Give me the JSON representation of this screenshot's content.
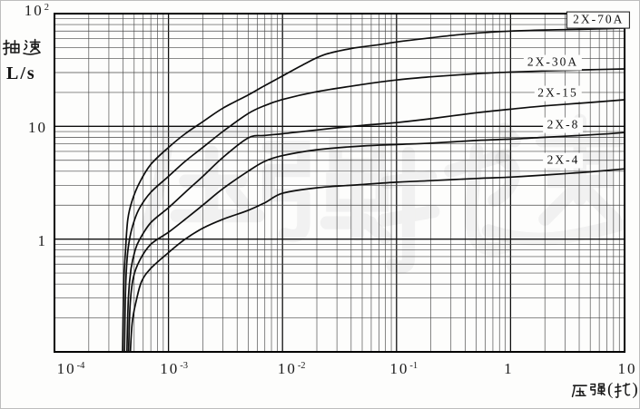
{
  "page": {
    "background": "#fdfdfc",
    "ink": "#141414"
  },
  "chart_data": {
    "type": "line",
    "title": "",
    "xlabel": "压强(托)",
    "ylabel": "抽速",
    "ylabel_units": "L/s",
    "x_scale": "log",
    "y_scale": "log",
    "xlim": [
      0.0001,
      10
    ],
    "ylim": [
      0.1,
      100
    ],
    "grid": "log-log graph paper with minor decade lines",
    "legend_position": "inline-right-labels",
    "x_ticks": [
      {
        "text": "10",
        "sup": "-4",
        "value": 0.0001
      },
      {
        "text": "10",
        "sup": "-3",
        "value": 0.001
      },
      {
        "text": "10",
        "sup": "-2",
        "value": 0.01
      },
      {
        "text": "10",
        "sup": "-1",
        "value": 0.1
      },
      {
        "text": "1",
        "sup": "",
        "value": 1
      },
      {
        "text": "10",
        "sup": "",
        "value": 10
      }
    ],
    "y_ticks": [
      {
        "text": "10",
        "sup": "2",
        "value": 100
      },
      {
        "text": "10",
        "sup": "",
        "value": 10
      },
      {
        "text": "1",
        "sup": "",
        "value": 1
      }
    ],
    "series": [
      {
        "name": "2X-70A",
        "boxed_label": true,
        "label_at": [
          5.9,
          88
        ],
        "points": [
          [
            0.000395,
            0.085
          ],
          [
            0.000405,
            0.4
          ],
          [
            0.00042,
            0.8
          ],
          [
            0.00044,
            1.5
          ],
          [
            0.00048,
            2.2
          ],
          [
            0.00056,
            3.2
          ],
          [
            0.0007,
            4.6
          ],
          [
            0.001,
            6.5
          ],
          [
            0.0014,
            8.6
          ],
          [
            0.002,
            11
          ],
          [
            0.003,
            14.5
          ],
          [
            0.005,
            19
          ],
          [
            0.007,
            23
          ],
          [
            0.01,
            28
          ],
          [
            0.015,
            35
          ],
          [
            0.023,
            43
          ],
          [
            0.04,
            49
          ],
          [
            0.07,
            53
          ],
          [
            0.1,
            56
          ],
          [
            0.2,
            61
          ],
          [
            0.35,
            65
          ],
          [
            0.6,
            68
          ],
          [
            1,
            70
          ],
          [
            2,
            71.5
          ],
          [
            4,
            72.5
          ],
          [
            7,
            73.5
          ],
          [
            10,
            74.5
          ]
        ]
      },
      {
        "name": "2X-30A",
        "boxed_label": false,
        "label_at": [
          2.35,
          36.5
        ],
        "points": [
          [
            0.00041,
            0.085
          ],
          [
            0.00042,
            0.35
          ],
          [
            0.000435,
            0.7
          ],
          [
            0.00046,
            1.05
          ],
          [
            0.0005,
            1.45
          ],
          [
            0.00056,
            1.9
          ],
          [
            0.0007,
            2.6
          ],
          [
            0.001,
            3.6
          ],
          [
            0.0014,
            4.9
          ],
          [
            0.002,
            6.5
          ],
          [
            0.003,
            9.0
          ],
          [
            0.005,
            13
          ],
          [
            0.007,
            15.3
          ],
          [
            0.01,
            17.3
          ],
          [
            0.02,
            20.3
          ],
          [
            0.05,
            23.5
          ],
          [
            0.1,
            25.8
          ],
          [
            0.2,
            27.5
          ],
          [
            0.5,
            29.3
          ],
          [
            1,
            30.3
          ],
          [
            2,
            31
          ],
          [
            5,
            31.8
          ],
          [
            10,
            32.3
          ]
        ]
      },
      {
        "name": "2X-15",
        "boxed_label": false,
        "label_at": [
          2.6,
          19.5
        ],
        "points": [
          [
            0.00043,
            0.085
          ],
          [
            0.000445,
            0.3
          ],
          [
            0.00047,
            0.55
          ],
          [
            0.00051,
            0.8
          ],
          [
            0.00056,
            1.0
          ],
          [
            0.0007,
            1.4
          ],
          [
            0.001,
            1.9
          ],
          [
            0.0014,
            2.6
          ],
          [
            0.002,
            3.6
          ],
          [
            0.003,
            5.3
          ],
          [
            0.005,
            7.9
          ],
          [
            0.007,
            8.3
          ],
          [
            0.01,
            8.6
          ],
          [
            0.02,
            9.3
          ],
          [
            0.05,
            10.2
          ],
          [
            0.1,
            10.8
          ],
          [
            0.2,
            11.7
          ],
          [
            0.5,
            13.2
          ],
          [
            1,
            14.2
          ],
          [
            2,
            15.2
          ],
          [
            5,
            16.3
          ],
          [
            10,
            17.2
          ]
        ]
      },
      {
        "name": "2X-8",
        "boxed_label": false,
        "label_at": [
          2.9,
          10.3
        ],
        "points": [
          [
            0.000445,
            0.085
          ],
          [
            0.00046,
            0.25
          ],
          [
            0.00049,
            0.45
          ],
          [
            0.00056,
            0.65
          ],
          [
            0.0007,
            0.9
          ],
          [
            0.001,
            1.15
          ],
          [
            0.0014,
            1.5
          ],
          [
            0.002,
            2.0
          ],
          [
            0.003,
            2.8
          ],
          [
            0.005,
            4.0
          ],
          [
            0.007,
            4.9
          ],
          [
            0.01,
            5.5
          ],
          [
            0.02,
            6.2
          ],
          [
            0.05,
            6.7
          ],
          [
            0.1,
            6.9
          ],
          [
            0.2,
            7.1
          ],
          [
            0.5,
            7.5
          ],
          [
            1,
            7.7
          ],
          [
            2,
            8.0
          ],
          [
            5,
            8.4
          ],
          [
            10,
            8.8
          ]
        ]
      },
      {
        "name": "2X-4",
        "boxed_label": false,
        "label_at": [
          2.9,
          5.0
        ],
        "points": [
          [
            0.00046,
            0.085
          ],
          [
            0.00048,
            0.18
          ],
          [
            0.00052,
            0.28
          ],
          [
            0.00058,
            0.42
          ],
          [
            0.0007,
            0.55
          ],
          [
            0.001,
            0.76
          ],
          [
            0.0014,
            1.0
          ],
          [
            0.002,
            1.25
          ],
          [
            0.003,
            1.5
          ],
          [
            0.005,
            1.8
          ],
          [
            0.007,
            2.1
          ],
          [
            0.01,
            2.55
          ],
          [
            0.02,
            2.85
          ],
          [
            0.05,
            3.05
          ],
          [
            0.1,
            3.2
          ],
          [
            0.2,
            3.3
          ],
          [
            0.5,
            3.45
          ],
          [
            1,
            3.55
          ],
          [
            2,
            3.7
          ],
          [
            5,
            3.95
          ],
          [
            10,
            4.2
          ]
        ]
      }
    ]
  }
}
